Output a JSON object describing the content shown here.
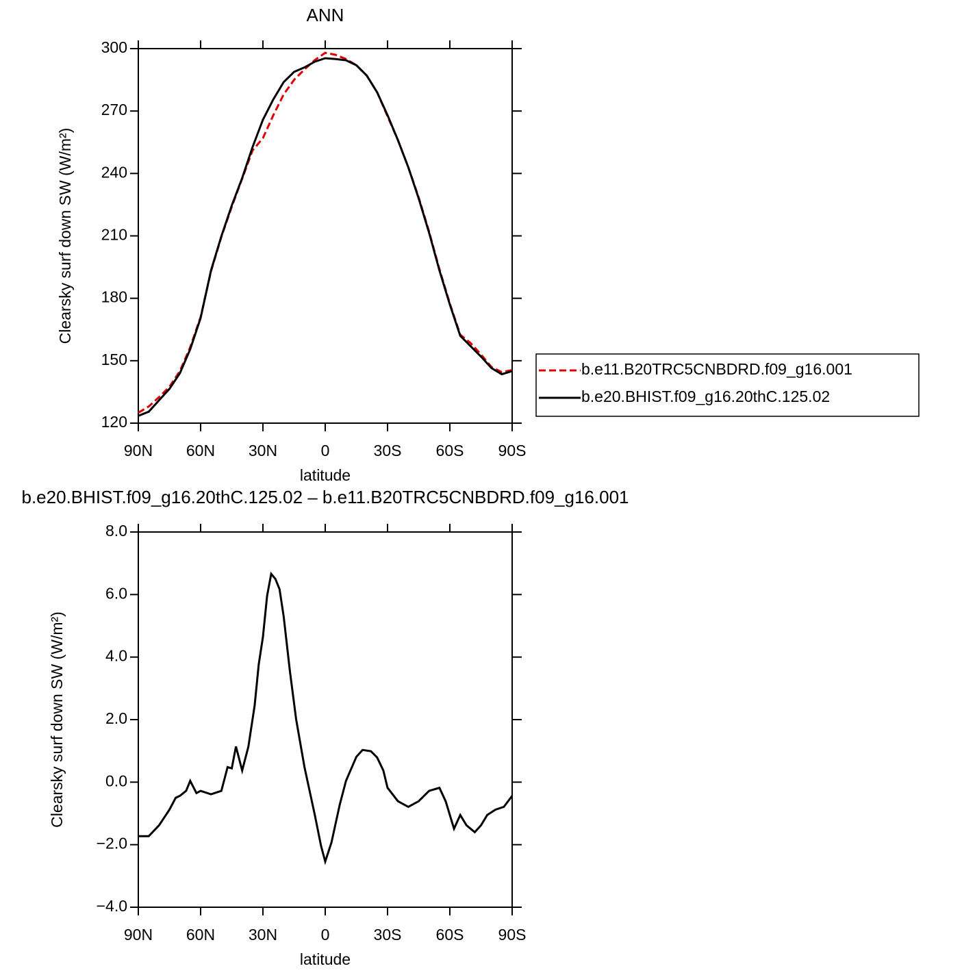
{
  "chart_data": [
    {
      "type": "line",
      "title": "ANN",
      "xlabel": "latitude",
      "ylabel": "Clearsky surf down SW (W/m²)",
      "x": [
        90,
        85,
        80,
        75,
        70,
        65,
        60,
        55,
        50,
        45,
        40,
        35,
        30,
        25,
        20,
        15,
        10,
        5,
        0,
        -5,
        -10,
        -15,
        -20,
        -25,
        -30,
        -35,
        -40,
        -45,
        -50,
        -55,
        -60,
        -65,
        -70,
        -75,
        -80,
        -85,
        -90
      ],
      "series": [
        {
          "name": "b.e11.B20TRC5CNBDRD.f09_g16.001",
          "color": "#e00000",
          "style": "dashed",
          "values": [
            125,
            128,
            132.5,
            137.5,
            145,
            156.5,
            171,
            193,
            209.5,
            224,
            237.5,
            251,
            257,
            268,
            278,
            285,
            290,
            294.5,
            298,
            297,
            295,
            292,
            287,
            279,
            267.5,
            256,
            243,
            228.5,
            212,
            194,
            177.5,
            162.5,
            158.5,
            153,
            147,
            144.5,
            145.5
          ]
        },
        {
          "name": "b.e20.BHIST.f09_g16.20thC.125.02",
          "color": "#000000",
          "style": "solid",
          "values": [
            123.5,
            125.5,
            131,
            136.5,
            144,
            155.5,
            170.5,
            193.4,
            209.8,
            224.6,
            237.8,
            252.6,
            265.8,
            275.6,
            283.9,
            288.8,
            291,
            293.7,
            295.4,
            295,
            294.4,
            292,
            287,
            279,
            268,
            256,
            243,
            228,
            211.5,
            193.4,
            177,
            162,
            157,
            152,
            146.5,
            143.5,
            145
          ]
        }
      ],
      "xlim": [
        90,
        -90
      ],
      "xticks": [
        {
          "value": 90,
          "label": "90N"
        },
        {
          "value": 60,
          "label": "60N"
        },
        {
          "value": 30,
          "label": "30N"
        },
        0,
        {
          "value": -30,
          "label": "30S"
        },
        {
          "value": -60,
          "label": "60S"
        },
        {
          "value": -90,
          "label": "90S"
        }
      ],
      "ylim": [
        120,
        300
      ],
      "yticks": [
        120,
        150,
        180,
        210,
        240,
        270,
        300
      ],
      "legend": "right"
    },
    {
      "type": "line",
      "title": "b.e20.BHIST.f09_g16.20thC.125.02 – b.e11.B20TRC5CNBDRD.f09_g16.001",
      "xlabel": "latitude",
      "ylabel": "Clearsky surf down SW (W/m²)",
      "x": [
        90,
        85,
        80,
        75,
        72,
        70,
        67,
        65,
        62,
        60,
        55,
        50,
        47,
        45,
        43,
        40,
        37,
        34,
        32,
        30,
        28,
        26,
        24,
        22,
        20,
        17,
        14,
        10,
        5,
        2,
        0,
        -3,
        -7,
        -10,
        -15,
        -18,
        -22,
        -25,
        -28,
        -30,
        -35,
        -40,
        -45,
        -50,
        -55,
        -58,
        -62,
        -65,
        -68,
        -72,
        -75,
        -78,
        -82,
        -86,
        -90
      ],
      "series": [
        {
          "color": "#000000",
          "style": "solid",
          "values": [
            -1.73,
            -1.73,
            -1.38,
            -0.88,
            -0.5,
            -0.44,
            -0.28,
            0.04,
            -0.35,
            -0.28,
            -0.39,
            -0.28,
            0.48,
            0.44,
            1.14,
            0.37,
            1.14,
            2.45,
            3.77,
            4.64,
            5.96,
            6.66,
            6.5,
            6.17,
            5.3,
            3.55,
            2.01,
            0.48,
            -1.05,
            -2.04,
            -2.54,
            -1.93,
            -0.72,
            0.04,
            0.81,
            1.03,
            0.99,
            0.79,
            0.37,
            -0.18,
            -0.61,
            -0.79,
            -0.61,
            -0.28,
            -0.18,
            -0.61,
            -1.49,
            -1.05,
            -1.38,
            -1.6,
            -1.38,
            -1.05,
            -0.88,
            -0.79,
            -0.44
          ]
        }
      ],
      "xlim": [
        90,
        -90
      ],
      "xticks": [
        {
          "value": 90,
          "label": "90N"
        },
        {
          "value": 60,
          "label": "60N"
        },
        {
          "value": 30,
          "label": "30N"
        },
        0,
        {
          "value": -30,
          "label": "30S"
        },
        {
          "value": -60,
          "label": "60S"
        },
        {
          "value": -90,
          "label": "90S"
        }
      ],
      "ylim": [
        -4,
        8
      ],
      "yticks": [
        {
          "value": -4,
          "label": "−4.0"
        },
        {
          "value": -2,
          "label": "−2.0"
        },
        {
          "value": 0,
          "label": "0.0"
        },
        {
          "value": 2,
          "label": "2.0"
        },
        {
          "value": 4,
          "label": "4.0"
        },
        {
          "value": 6,
          "label": "6.0"
        },
        {
          "value": 8,
          "label": "8.0"
        }
      ]
    }
  ]
}
